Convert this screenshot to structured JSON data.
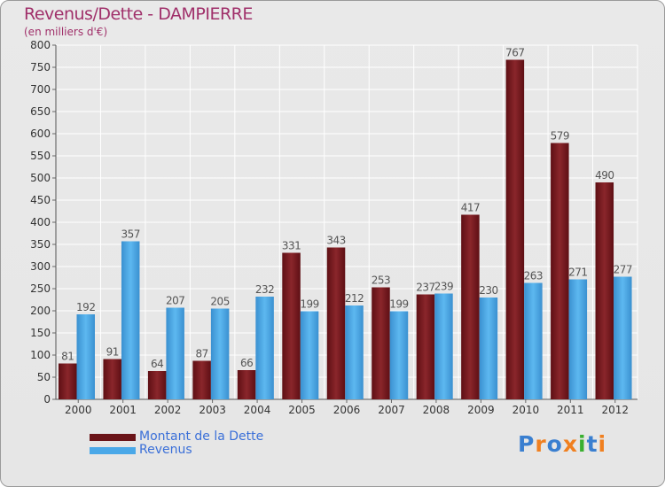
{
  "title": "Revenus/Dette - DAMPIERRE",
  "unit_label": "(en milliers d'€)",
  "logo": {
    "text": "Proxiti",
    "letter_colors": [
      "#3a7fd0",
      "#f08020",
      "#3a7fd0",
      "#f08020",
      "#3ab030",
      "#3a7fd0",
      "#f08020"
    ]
  },
  "colors": {
    "debt": "#7a1a20",
    "revenue": "#4aa8e8",
    "tick_text": "#333333",
    "label_text": "#555555",
    "legend_text": "#3a6fd8",
    "title": "#a0306a"
  },
  "chart_data": {
    "type": "bar",
    "categories": [
      "2000",
      "2001",
      "2002",
      "2003",
      "2004",
      "2005",
      "2006",
      "2007",
      "2008",
      "2009",
      "2010",
      "2011",
      "2012"
    ],
    "series": [
      {
        "name": "Montant de la Dette",
        "values": [
          81,
          91,
          64,
          87,
          66,
          331,
          343,
          253,
          237,
          417,
          767,
          579,
          490
        ]
      },
      {
        "name": "Revenus",
        "values": [
          192,
          357,
          207,
          205,
          232,
          199,
          212,
          199,
          239,
          230,
          263,
          271,
          277
        ]
      }
    ],
    "ylim": [
      0,
      800
    ],
    "yticks": [
      0,
      50,
      100,
      150,
      200,
      250,
      300,
      350,
      400,
      450,
      500,
      550,
      600,
      650,
      700,
      750,
      800
    ],
    "grid": true,
    "legend_position": "bottom-left"
  }
}
